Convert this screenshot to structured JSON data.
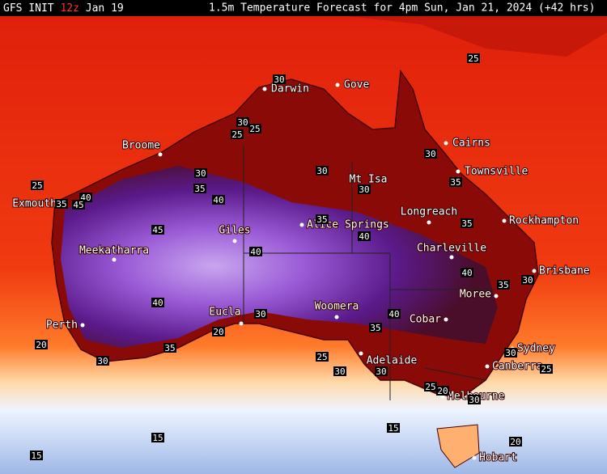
{
  "header": {
    "model": "GFS INIT",
    "run": "12z",
    "date": "Jan 19",
    "title": "1.5m Temperature Forecast for 4pm Sun, Jan 21, 2024 (+42 hrs)"
  },
  "cities": [
    "Darwin",
    "Gove",
    "Broome",
    "Cairns",
    "Townsville",
    "Mt Isa",
    "Longreach",
    "Rockhampton",
    "Alice Springs",
    "Giles",
    "Exmouth",
    "Meekatharra",
    "Charleville",
    "Brisbane",
    "Moree",
    "Eucla",
    "Woomera",
    "Cobar",
    "Perth",
    "Adelaide",
    "Sydney",
    "Canberra",
    "Melbourne",
    "Hobart"
  ],
  "contours": [
    30,
    25,
    30,
    25,
    25,
    30,
    30,
    30,
    35,
    25,
    35,
    30,
    40,
    35,
    45,
    40,
    35,
    35,
    45,
    40,
    40,
    40,
    35,
    30,
    40,
    40,
    30,
    35,
    20,
    20,
    35,
    30,
    25,
    30,
    25,
    30,
    30,
    25,
    30,
    20,
    15,
    15,
    20,
    15
  ]
}
